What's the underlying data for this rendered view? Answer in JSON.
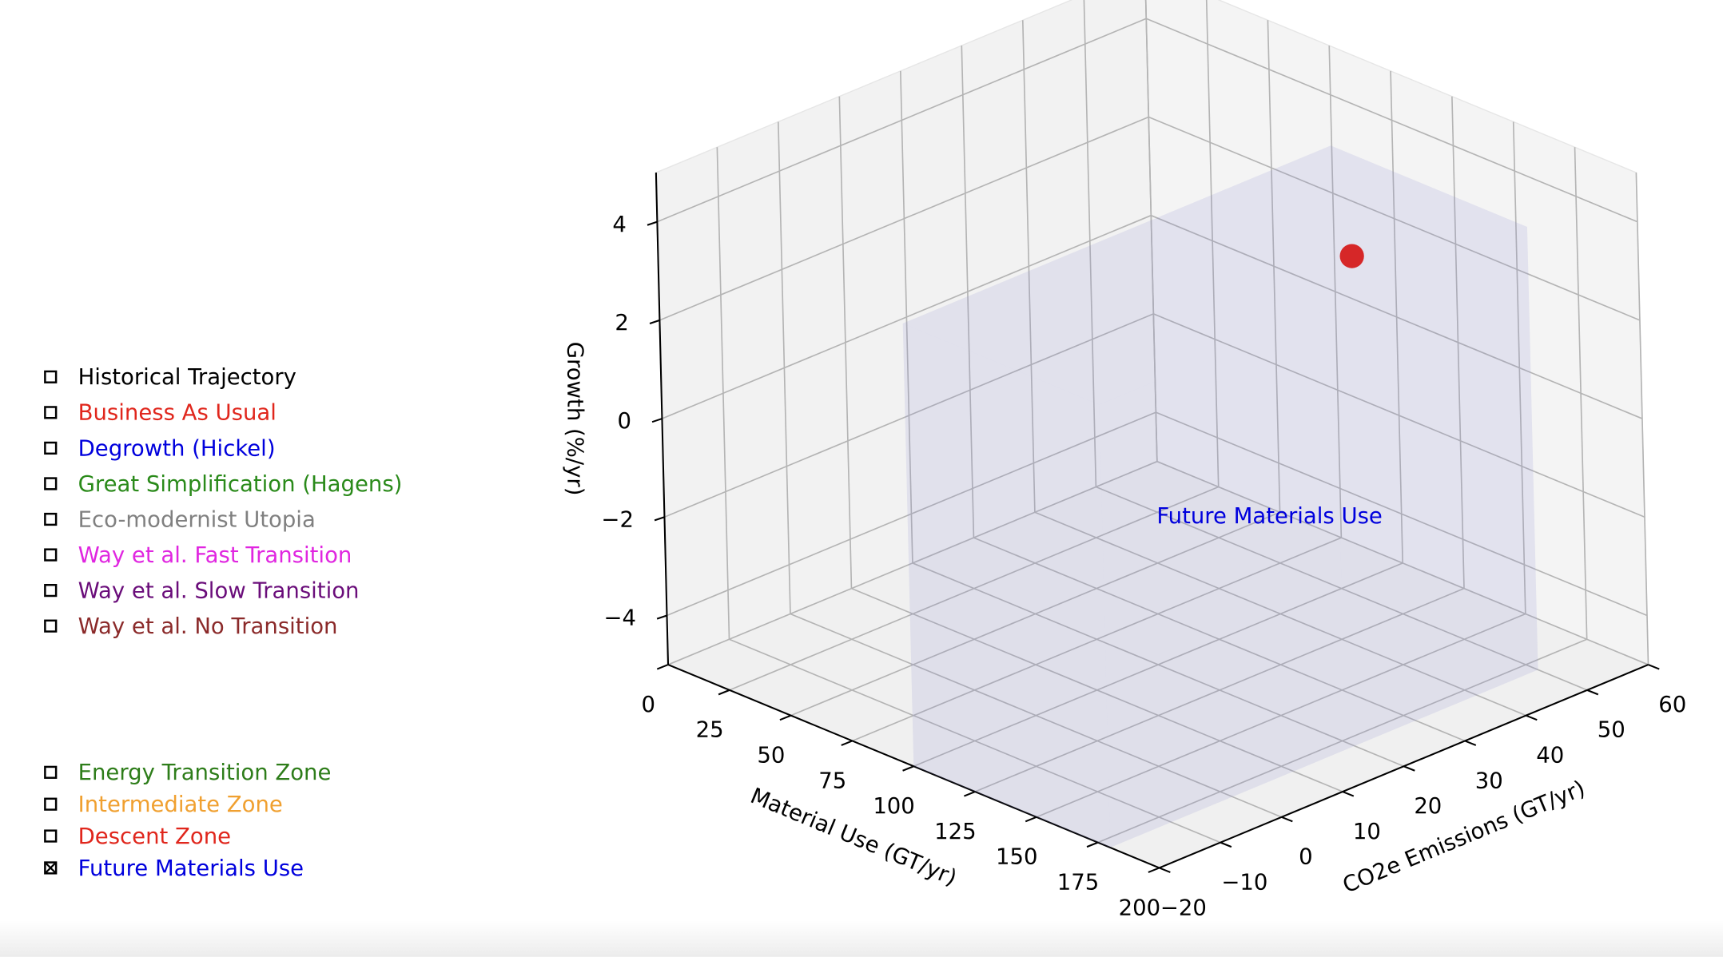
{
  "controls": {
    "scenarios": [
      {
        "label": "Historical Trajectory",
        "color": "#000000",
        "checked": false
      },
      {
        "label": "Business As Usual",
        "color": "#e0261c",
        "checked": false
      },
      {
        "label": "Degrowth (Hickel)",
        "color": "#0000dd",
        "checked": false
      },
      {
        "label": "Great Simplification (Hagens)",
        "color": "#2a8a1a",
        "checked": false
      },
      {
        "label": "Eco-modernist Utopia",
        "color": "#808080",
        "checked": false
      },
      {
        "label": "Way et al. Fast Transition",
        "color": "#e026e0",
        "checked": false
      },
      {
        "label": "Way et al. Slow Transition",
        "color": "#6a0d7a",
        "checked": false
      },
      {
        "label": "Way et al. No Transition",
        "color": "#8b2a2a",
        "checked": false
      }
    ],
    "zones": [
      {
        "label": "Energy Transition Zone",
        "color": "#2e7d1a",
        "checked": false
      },
      {
        "label": "Intermediate Zone",
        "color": "#f0a030",
        "checked": false
      },
      {
        "label": "Descent Zone",
        "color": "#e0261c",
        "checked": false
      },
      {
        "label": "Future Materials Use",
        "color": "#0000dd",
        "checked": true
      }
    ]
  },
  "chart_data": {
    "type": "scatter3d",
    "xlabel": "Material Use (GT/yr)",
    "ylabel": "CO2e Emissions (GT/yr)",
    "zlabel": "Growth (%/yr)",
    "xlim": [
      0,
      200
    ],
    "ylim": [
      -20,
      60
    ],
    "zlim": [
      -5,
      5
    ],
    "xticks": [
      0,
      25,
      50,
      75,
      100,
      125,
      150,
      175,
      200
    ],
    "yticks": [
      {
        "value": -20,
        "label": "−20"
      },
      {
        "value": -10,
        "label": "−10"
      },
      0,
      10,
      20,
      30,
      40,
      50,
      60
    ],
    "zticks": [
      {
        "value": -4,
        "label": "−4"
      },
      {
        "value": -2,
        "label": "−2"
      },
      0,
      2,
      4
    ],
    "grid": true,
    "series": [
      {
        "color": "#d62728",
        "x": [
          100
        ],
        "y": [
          53
        ],
        "z": [
          1.6
        ]
      }
    ],
    "zone": {
      "name": "Future Materials Use",
      "color": "#8c8cd8",
      "xlim": [
        100,
        180
      ],
      "ylim": [
        -20,
        50
      ],
      "zlim": [
        -5,
        4
      ]
    }
  }
}
